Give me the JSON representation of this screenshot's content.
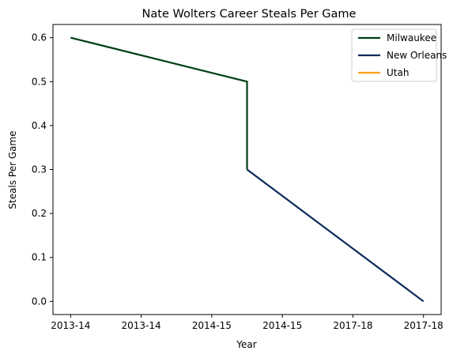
{
  "chart_data": {
    "type": "line",
    "title": "Nate Wolters Career Steals Per Game",
    "xlabel": "Year",
    "ylabel": "Steals Per Game",
    "x_tick_labels": [
      "2013-14",
      "2013-14",
      "2014-15",
      "2014-15",
      "2017-18",
      "2017-18"
    ],
    "y_ticks": [
      "0.0",
      "0.1",
      "0.2",
      "0.3",
      "0.4",
      "0.5",
      "0.6"
    ],
    "xlim": [
      -0.25,
      5.25
    ],
    "ylim": [
      -0.03,
      0.63
    ],
    "grid": false,
    "legend_position": "top-right",
    "series": [
      {
        "name": "Milwaukee",
        "color": "#004016",
        "points": [
          [
            0,
            0.6
          ],
          [
            2.5,
            0.5
          ],
          [
            2.5,
            0.3
          ]
        ]
      },
      {
        "name": "New Orleans",
        "color": "#0a2a5c",
        "points": [
          [
            2.5,
            0.3
          ],
          [
            5,
            0.0
          ]
        ]
      },
      {
        "name": "Utah",
        "color": "#f9a11b",
        "points": []
      }
    ]
  }
}
